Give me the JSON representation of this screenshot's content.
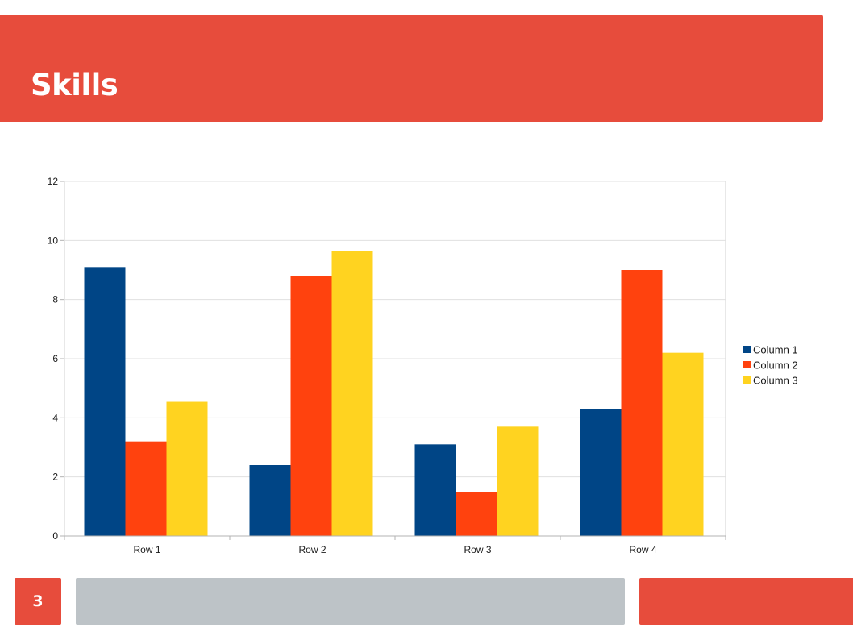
{
  "slide": {
    "title": "Skills",
    "page_number": "3"
  },
  "colors": {
    "accent": "#e74c3c",
    "footer_gray": "#bdc3c7",
    "series": [
      "#004586",
      "#ff420e",
      "#ffd320"
    ]
  },
  "chart_data": {
    "type": "bar",
    "categories": [
      "Row 1",
      "Row 2",
      "Row 3",
      "Row 4"
    ],
    "series": [
      {
        "name": "Column 1",
        "values": [
          9.1,
          2.4,
          3.1,
          4.3
        ]
      },
      {
        "name": "Column 2",
        "values": [
          3.2,
          8.8,
          1.5,
          9.0
        ]
      },
      {
        "name": "Column 3",
        "values": [
          4.54,
          9.65,
          3.7,
          6.2
        ]
      }
    ],
    "yticks": [
      "0",
      "2",
      "4",
      "6",
      "8",
      "10",
      "12"
    ],
    "ylim": [
      0,
      12
    ],
    "grid": true,
    "legend_position": "right"
  }
}
